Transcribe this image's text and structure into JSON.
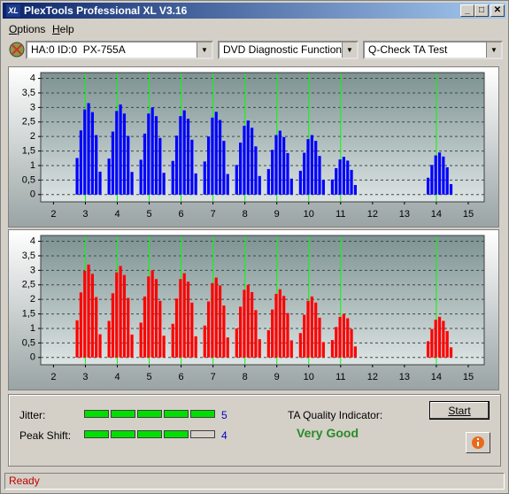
{
  "window": {
    "title": "PlexTools Professional XL V3.16",
    "icon": "XL"
  },
  "menu": [
    "Options",
    "Help"
  ],
  "toolbar": {
    "drive": "HA:0 ID:0  PX-755A",
    "function": "DVD Diagnostic Functions",
    "test": "Q-Check TA Test"
  },
  "chart_data": [
    {
      "type": "bar",
      "color": "#0000ff",
      "grid": true,
      "reference_lines": [
        3,
        4,
        5,
        6,
        7,
        8,
        9,
        10,
        11,
        14
      ],
      "reference_color": "#00ff00",
      "xlim": [
        1.6,
        15.5
      ],
      "ylim": [
        -0.25,
        4.2
      ],
      "xticks": [
        2,
        3,
        4,
        5,
        6,
        7,
        8,
        9,
        10,
        11,
        12,
        13,
        14,
        15
      ],
      "yticks": [
        0,
        {
          "value": 0.5,
          "label": "0,5"
        },
        1,
        {
          "value": 1.5,
          "label": "1,5"
        },
        2,
        {
          "value": 2.5,
          "label": "2,5"
        },
        3,
        {
          "value": 3.5,
          "label": "3,5"
        },
        4
      ],
      "x": [
        2.74,
        2.86,
        2.98,
        3.1,
        3.22,
        3.34,
        3.46,
        3.74,
        3.86,
        3.98,
        4.1,
        4.22,
        4.34,
        4.46,
        4.74,
        4.86,
        4.98,
        5.1,
        5.22,
        5.34,
        5.46,
        5.74,
        5.86,
        5.98,
        6.1,
        6.22,
        6.34,
        6.46,
        6.74,
        6.86,
        6.98,
        7.1,
        7.22,
        7.34,
        7.46,
        7.74,
        7.86,
        7.98,
        8.1,
        8.22,
        8.34,
        8.46,
        8.74,
        8.86,
        8.98,
        9.1,
        9.22,
        9.34,
        9.46,
        9.74,
        9.86,
        9.98,
        10.1,
        10.22,
        10.34,
        10.46,
        10.74,
        10.86,
        10.98,
        11.1,
        11.22,
        11.34,
        11.46,
        13.74,
        13.86,
        13.98,
        14.1,
        14.22,
        14.34,
        14.46
      ],
      "values": [
        1.26,
        2.21,
        2.93,
        3.15,
        2.84,
        2.05,
        0.79,
        1.24,
        2.17,
        2.88,
        3.1,
        2.79,
        2.02,
        0.78,
        1.2,
        2.1,
        2.79,
        3.0,
        2.7,
        1.95,
        0.75,
        1.16,
        2.03,
        2.7,
        2.9,
        2.61,
        1.89,
        0.73,
        1.14,
        2.0,
        2.65,
        2.85,
        2.57,
        1.85,
        0.71,
        1.02,
        1.79,
        2.37,
        2.55,
        2.3,
        1.66,
        0.64,
        0.88,
        1.54,
        2.05,
        2.2,
        1.98,
        1.43,
        0.55,
        0.82,
        1.44,
        1.91,
        2.05,
        1.85,
        1.33,
        0.51,
        0.52,
        0.91,
        1.21,
        1.3,
        1.17,
        0.85,
        0.33,
        0.58,
        1.02,
        1.35,
        1.45,
        1.31,
        0.94,
        0.36
      ]
    },
    {
      "type": "bar",
      "color": "#ff0000",
      "grid": true,
      "reference_lines": [
        3,
        4,
        5,
        6,
        7,
        8,
        9,
        10,
        11,
        14
      ],
      "reference_color": "#00ff00",
      "xlim": [
        1.6,
        15.5
      ],
      "ylim": [
        -0.25,
        4.2
      ],
      "xticks": [
        2,
        3,
        4,
        5,
        6,
        7,
        8,
        9,
        10,
        11,
        12,
        13,
        14,
        15
      ],
      "yticks": [
        0,
        {
          "value": 0.5,
          "label": "0,5"
        },
        1,
        {
          "value": 1.5,
          "label": "1,5"
        },
        2,
        {
          "value": 2.5,
          "label": "2,5"
        },
        3,
        {
          "value": 3.5,
          "label": "3,5"
        },
        4
      ],
      "x": [
        2.74,
        2.86,
        2.98,
        3.1,
        3.22,
        3.34,
        3.46,
        3.74,
        3.86,
        3.98,
        4.1,
        4.22,
        4.34,
        4.46,
        4.74,
        4.86,
        4.98,
        5.1,
        5.22,
        5.34,
        5.46,
        5.74,
        5.86,
        5.98,
        6.1,
        6.22,
        6.34,
        6.46,
        6.74,
        6.86,
        6.98,
        7.1,
        7.22,
        7.34,
        7.46,
        7.74,
        7.86,
        7.98,
        8.1,
        8.22,
        8.34,
        8.46,
        8.74,
        8.86,
        8.98,
        9.1,
        9.22,
        9.34,
        9.46,
        9.74,
        9.86,
        9.98,
        10.1,
        10.22,
        10.34,
        10.46,
        10.74,
        10.86,
        10.98,
        11.1,
        11.22,
        11.34,
        11.46,
        13.74,
        13.86,
        13.98,
        14.1,
        14.22,
        14.34,
        14.46
      ],
      "values": [
        1.28,
        2.24,
        2.98,
        3.2,
        2.88,
        2.08,
        0.8,
        1.26,
        2.21,
        2.93,
        3.15,
        2.84,
        2.05,
        0.79,
        1.2,
        2.1,
        2.79,
        3.0,
        2.7,
        1.95,
        0.75,
        1.16,
        2.03,
        2.7,
        2.9,
        2.61,
        1.89,
        0.73,
        1.1,
        1.93,
        2.56,
        2.75,
        2.48,
        1.79,
        0.69,
        1.0,
        1.75,
        2.33,
        2.5,
        2.25,
        1.63,
        0.63,
        0.94,
        1.65,
        2.19,
        2.35,
        2.12,
        1.53,
        0.59,
        0.84,
        1.47,
        1.95,
        2.1,
        1.89,
        1.37,
        0.53,
        0.6,
        1.05,
        1.4,
        1.5,
        1.35,
        0.98,
        0.38,
        0.56,
        0.98,
        1.3,
        1.4,
        1.26,
        0.91,
        0.35
      ]
    }
  ],
  "results": {
    "jitter": {
      "label": "Jitter:",
      "value": 5
    },
    "peak_shift": {
      "label": "Peak Shift:",
      "value": 4
    },
    "quality": {
      "label": "TA Quality Indicator:",
      "value": "Very Good"
    }
  },
  "buttons": {
    "start": "Start"
  },
  "status": "Ready"
}
